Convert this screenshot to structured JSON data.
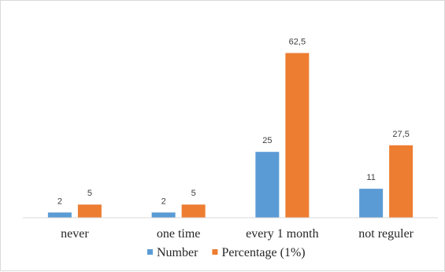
{
  "chart_data": {
    "type": "bar",
    "categories": [
      "never",
      "one time",
      "every 1 month",
      "not reguler"
    ],
    "series": [
      {
        "name": "Number",
        "values": [
          2,
          2,
          25,
          11
        ],
        "labels": [
          "2",
          "2",
          "25",
          "11"
        ],
        "color": "#5b9bd5"
      },
      {
        "name": "Percentage (1%)",
        "values": [
          5,
          5,
          62.5,
          27.5
        ],
        "labels": [
          "5",
          "5",
          "62,5",
          "27,5"
        ],
        "color": "#ed7d31"
      }
    ],
    "title": "",
    "xlabel": "",
    "ylabel": "",
    "ylim": [
      0,
      70
    ],
    "grid": false,
    "legend": "bottom",
    "axis_color": "#d9d9d9"
  }
}
